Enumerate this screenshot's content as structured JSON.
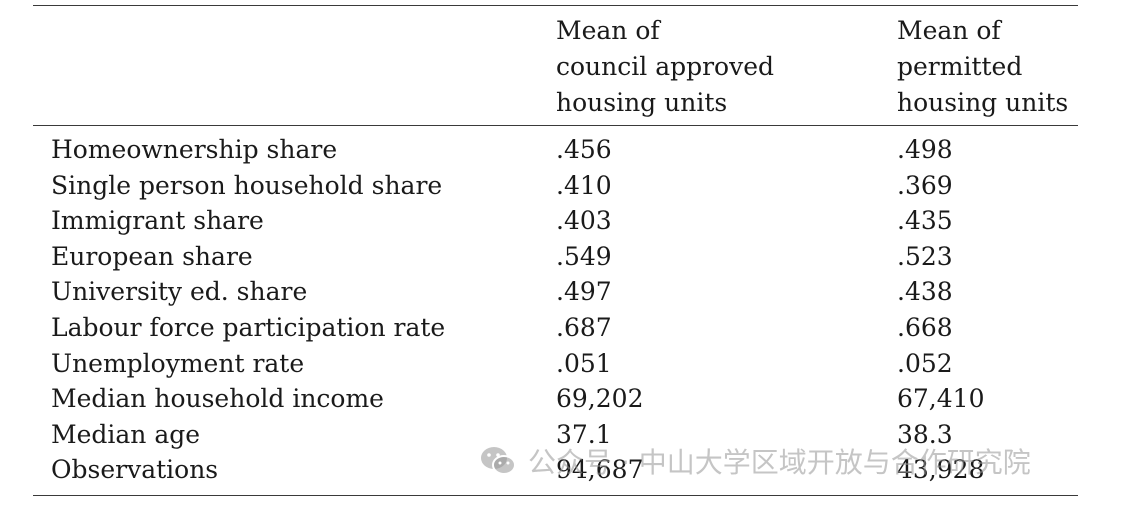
{
  "header": {
    "col1": [
      "Mean of",
      "council approved",
      "housing units"
    ],
    "col2": [
      "Mean of",
      "permitted",
      "housing units"
    ]
  },
  "rows": [
    {
      "label": "Homeownership share",
      "c1": ".456",
      "c2": ".498"
    },
    {
      "label": "Single person household share",
      "c1": ".410",
      "c2": ".369"
    },
    {
      "label": "Immigrant share",
      "c1": ".403",
      "c2": ".435"
    },
    {
      "label": "European share",
      "c1": ".549",
      "c2": ".523"
    },
    {
      "label": "University ed. share",
      "c1": ".497",
      "c2": ".438"
    },
    {
      "label": "Labour force participation rate",
      "c1": ".687",
      "c2": ".668"
    },
    {
      "label": "Unemployment rate",
      "c1": ".051",
      "c2": ".052"
    },
    {
      "label": "Median household income",
      "c1": "69,202",
      "c2": "67,410"
    },
    {
      "label": "Median age",
      "c1": "37.1",
      "c2": "38.3"
    },
    {
      "label": "Observations",
      "c1": "94,687",
      "c2": "43,928"
    }
  ],
  "watermark": {
    "text": "公众号 · 中山大学区域开放与合作研究院",
    "icon": "wechat-icon"
  }
}
